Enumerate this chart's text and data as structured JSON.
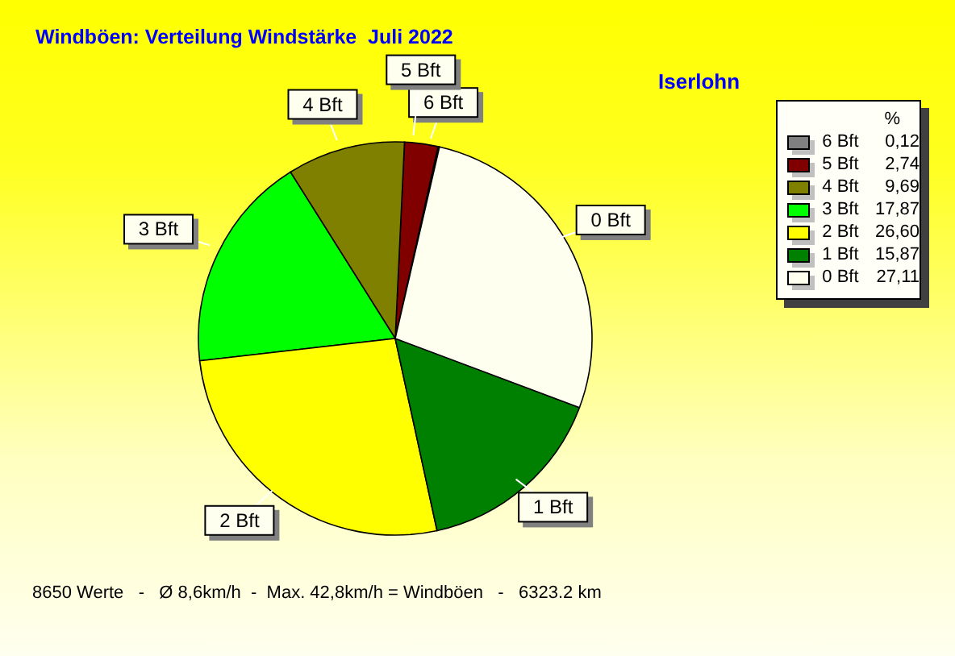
{
  "chart_data": {
    "type": "pie",
    "title": "Windböen: Verteilung Windstärke  Juli 2022",
    "subtitle": "Iserlohn",
    "legend_title": "%",
    "categories": [
      "6 Bft",
      "5 Bft",
      "4 Bft",
      "3 Bft",
      "2 Bft",
      "1 Bft",
      "0 Bft"
    ],
    "values": [
      0.12,
      2.74,
      9.69,
      17.87,
      26.6,
      15.87,
      27.11
    ],
    "value_labels": [
      "0,12",
      "2,74",
      "9,69",
      "17,87",
      "26,60",
      "15,87",
      "27,11"
    ],
    "colors": [
      "#808080",
      "#800000",
      "#808000",
      "#00ff00",
      "#ffff00",
      "#008000",
      "#fffff0"
    ],
    "legend": "top right",
    "annotations": [
      "8650 Werte   -   Ø 8,6km/h  -  Max. 42,8km/h = Windböen   -   6323.2 km"
    ]
  }
}
